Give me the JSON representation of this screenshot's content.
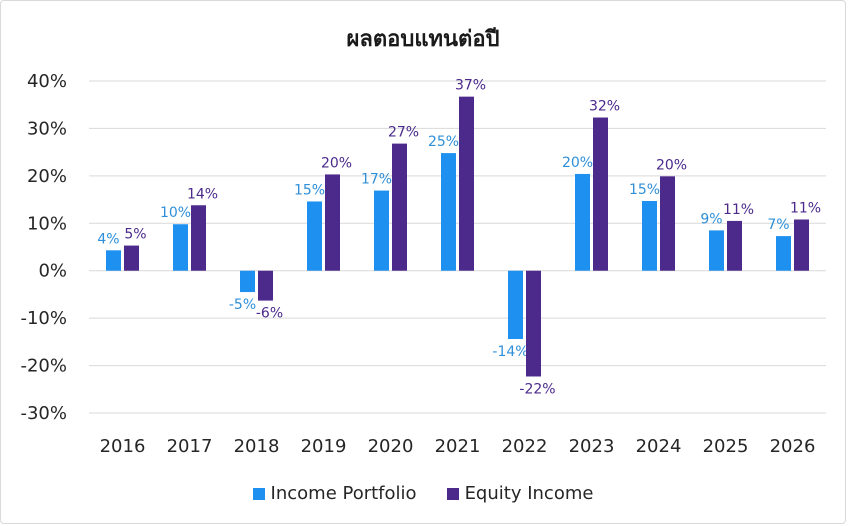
{
  "chart_data": {
    "type": "bar",
    "title": "ผลตอบแทนต่อปี",
    "categories": [
      "2016",
      "2017",
      "2018",
      "2019",
      "2020",
      "2021",
      "2022",
      "2023",
      "2024",
      "2025",
      "2026"
    ],
    "series": [
      {
        "name": "Income Portfolio",
        "color": "#1e90f0",
        "values": [
          4.3,
          9.8,
          -4.5,
          14.6,
          16.9,
          24.8,
          -14.4,
          20.4,
          14.7,
          8.5,
          7.3
        ],
        "labels": [
          "4%",
          "10%",
          "-5%",
          "15%",
          "17%",
          "25%",
          "-14%",
          "20%",
          "15%",
          "9%",
          "7%"
        ]
      },
      {
        "name": "Equity Income",
        "color": "#4b2a8c",
        "values": [
          5.3,
          13.8,
          -6.3,
          20.3,
          26.8,
          36.7,
          -22.3,
          32.3,
          19.9,
          10.5,
          10.8
        ],
        "labels": [
          "5%",
          "14%",
          "-6%",
          "20%",
          "27%",
          "37%",
          "-22%",
          "32%",
          "20%",
          "11%",
          "11%"
        ]
      }
    ],
    "ylim": [
      -30,
      40
    ],
    "yticks": [
      40,
      30,
      20,
      10,
      0,
      -10,
      -20,
      -30
    ],
    "ytick_labels": [
      "40%",
      "30%",
      "20%",
      "10%",
      "0%",
      "-10%",
      "-20%",
      "-30%"
    ],
    "grid": true,
    "legend_position": "bottom"
  }
}
